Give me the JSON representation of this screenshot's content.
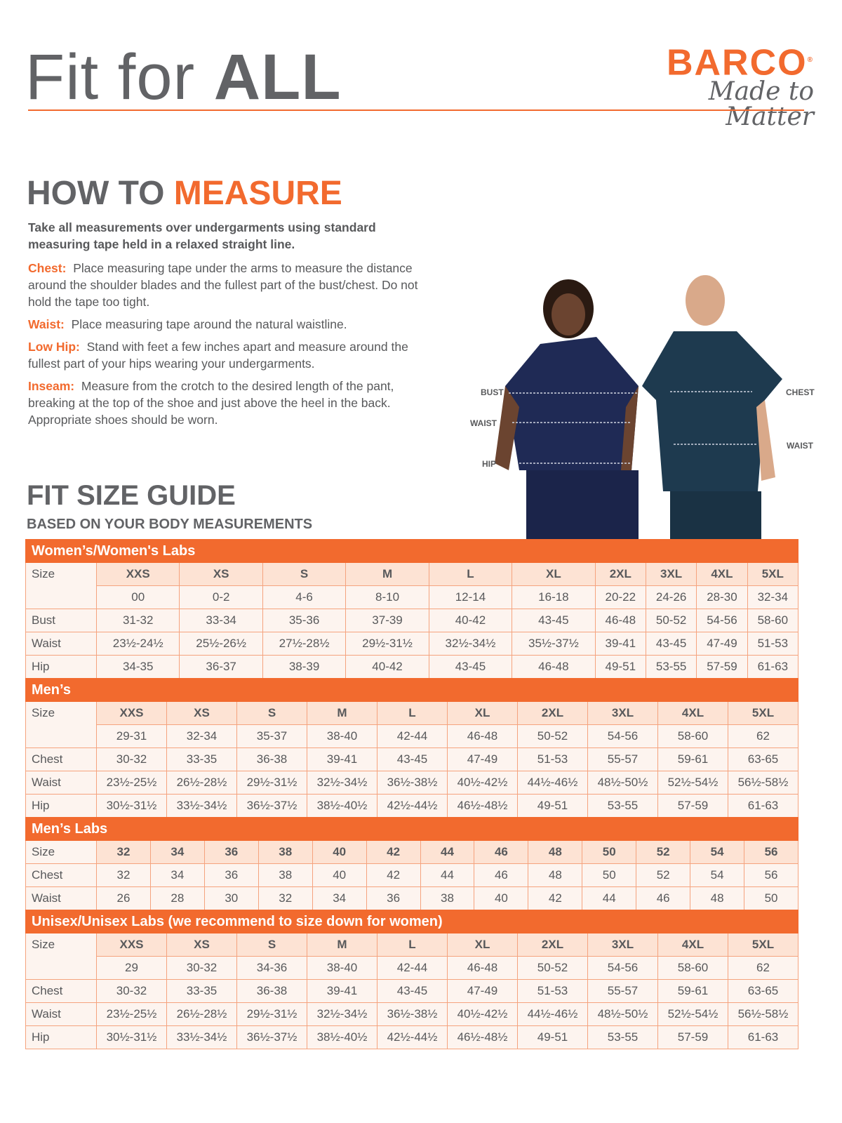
{
  "header": {
    "title_light": "Fit for ",
    "title_bold": "ALL",
    "brand": "BARCO",
    "tagline": "Made to Matter"
  },
  "measure": {
    "heading_1": "HOW TO ",
    "heading_2": "MEASURE",
    "intro": "Take all measurements over undergarments using standard measuring tape held in a relaxed straight line.",
    "items": [
      {
        "label": "Chest:",
        "text": "Place measuring tape under the arms to measure the distance around the shoulder blades and the fullest part of the bust/chest. Do not hold the tape too tight."
      },
      {
        "label": "Waist:",
        "text": "Place measuring tape around the natural waistline."
      },
      {
        "label": "Low Hip:",
        "text": "Stand with feet a few inches apart and measure around the fullest part of your hips wearing your undergarments."
      },
      {
        "label": "Inseam:",
        "text": "Measure from the crotch to the desired length of the pant, breaking at the top of the shoe and just above the heel in the back. Appropriate shoes should be worn."
      }
    ]
  },
  "photo_labels": {
    "bust": "BUST",
    "waist_w": "WAIST",
    "hip": "HIP",
    "chest": "CHEST",
    "waist_m": "WAIST"
  },
  "guide": {
    "title": "FIT SIZE GUIDE",
    "subtitle": "BASED ON YOUR BODY MEASUREMENTS"
  },
  "colors": {
    "accent": "#f26a2e",
    "text": "#58595b",
    "navy": "#1f2a55"
  },
  "tables": [
    {
      "title": "Women’s/Women's Labs",
      "size_label": "Size",
      "sizes": [
        "XXS",
        "XS",
        "S",
        "M",
        "L",
        "XL",
        "2XL",
        "3XL",
        "4XL",
        "5XL"
      ],
      "numeric": [
        "00",
        "0-2",
        "4-6",
        "8-10",
        "12-14",
        "16-18",
        "20-22",
        "24-26",
        "28-30",
        "32-34"
      ],
      "rows": [
        {
          "label": "Bust",
          "values": [
            "31-32",
            "33-34",
            "35-36",
            "37-39",
            "40-42",
            "43-45",
            "46-48",
            "50-52",
            "54-56",
            "58-60"
          ]
        },
        {
          "label": "Waist",
          "values": [
            "23½-24½",
            "25½-26½",
            "27½-28½",
            "29½-31½",
            "32½-34½",
            "35½-37½",
            "39-41",
            "43-45",
            "47-49",
            "51-53"
          ]
        },
        {
          "label": "Hip",
          "values": [
            "34-35",
            "36-37",
            "38-39",
            "40-42",
            "43-45",
            "46-48",
            "49-51",
            "53-55",
            "57-59",
            "61-63"
          ]
        }
      ]
    },
    {
      "title": "Men’s",
      "size_label": "Size",
      "sizes": [
        "XXS",
        "XS",
        "S",
        "M",
        "L",
        "XL",
        "2XL",
        "3XL",
        "4XL",
        "5XL"
      ],
      "numeric": [
        "29-31",
        "32-34",
        "35-37",
        "38-40",
        "42-44",
        "46-48",
        "50-52",
        "54-56",
        "58-60",
        "62"
      ],
      "rows": [
        {
          "label": "Chest",
          "values": [
            "30-32",
            "33-35",
            "36-38",
            "39-41",
            "43-45",
            "47-49",
            "51-53",
            "55-57",
            "59-61",
            "63-65"
          ]
        },
        {
          "label": "Waist",
          "values": [
            "23½-25½",
            "26½-28½",
            "29½-31½",
            "32½-34½",
            "36½-38½",
            "40½-42½",
            "44½-46½",
            "48½-50½",
            "52½-54½",
            "56½-58½"
          ]
        },
        {
          "label": "Hip",
          "values": [
            "30½-31½",
            "33½-34½",
            "36½-37½",
            "38½-40½",
            "42½-44½",
            "46½-48½",
            "49-51",
            "53-55",
            "57-59",
            "61-63"
          ]
        }
      ]
    },
    {
      "title": "Men’s Labs",
      "size_label": "Size",
      "sizes": [
        "32",
        "34",
        "36",
        "38",
        "40",
        "42",
        "44",
        "46",
        "48",
        "50",
        "52",
        "54",
        "56"
      ],
      "rows": [
        {
          "label": "Chest",
          "values": [
            "32",
            "34",
            "36",
            "38",
            "40",
            "42",
            "44",
            "46",
            "48",
            "50",
            "52",
            "54",
            "56"
          ]
        },
        {
          "label": "Waist",
          "values": [
            "26",
            "28",
            "30",
            "32",
            "34",
            "36",
            "38",
            "40",
            "42",
            "44",
            "46",
            "48",
            "50"
          ]
        }
      ]
    },
    {
      "title": "Unisex/Unisex Labs (we recommend to size down for women)",
      "size_label": "Size",
      "sizes": [
        "XXS",
        "XS",
        "S",
        "M",
        "L",
        "XL",
        "2XL",
        "3XL",
        "4XL",
        "5XL"
      ],
      "numeric": [
        "29",
        "30-32",
        "34-36",
        "38-40",
        "42-44",
        "46-48",
        "50-52",
        "54-56",
        "58-60",
        "62"
      ],
      "rows": [
        {
          "label": "Chest",
          "values": [
            "30-32",
            "33-35",
            "36-38",
            "39-41",
            "43-45",
            "47-49",
            "51-53",
            "55-57",
            "59-61",
            "63-65"
          ]
        },
        {
          "label": "Waist",
          "values": [
            "23½-25½",
            "26½-28½",
            "29½-31½",
            "32½-34½",
            "36½-38½",
            "40½-42½",
            "44½-46½",
            "48½-50½",
            "52½-54½",
            "56½-58½"
          ]
        },
        {
          "label": "Hip",
          "values": [
            "30½-31½",
            "33½-34½",
            "36½-37½",
            "38½-40½",
            "42½-44½",
            "46½-48½",
            "49-51",
            "53-55",
            "57-59",
            "61-63"
          ]
        }
      ]
    }
  ]
}
